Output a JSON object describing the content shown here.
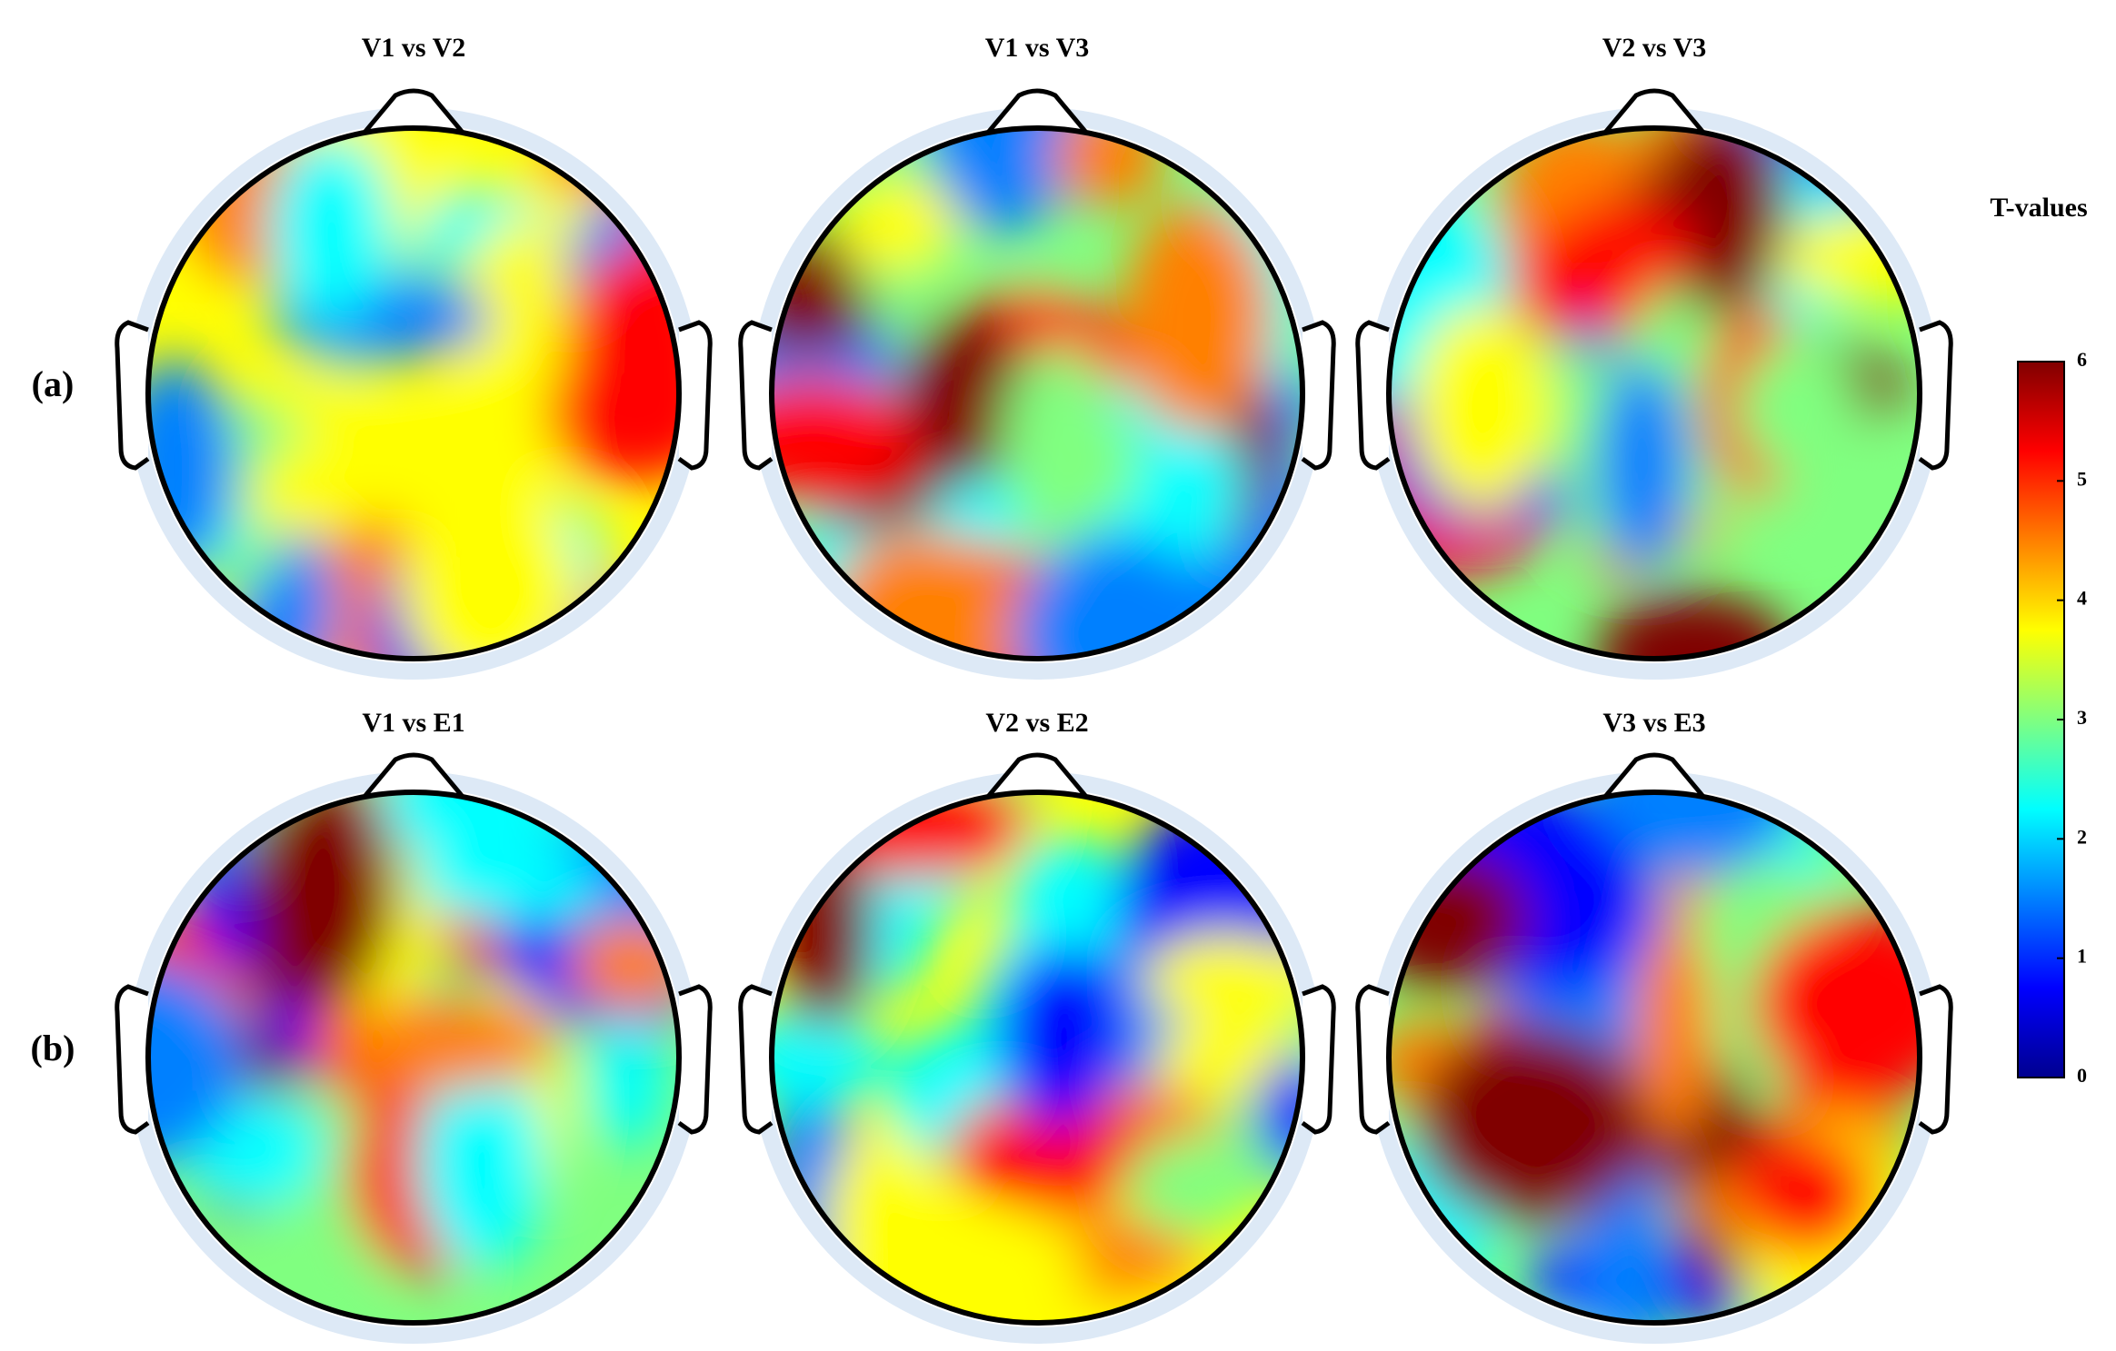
{
  "chart_data": {
    "type": "topomap",
    "panels": [
      {
        "title": "V1 vs V2"
      },
      {
        "title": "V1 vs V3"
      },
      {
        "title": "V2 vs V3"
      },
      {
        "title": "V1 vs E1"
      },
      {
        "title": "V2 vs E2"
      },
      {
        "title": "V3 vs E3"
      }
    ],
    "row_labels": [
      "(a)",
      "(b)"
    ],
    "colorbar": {
      "label": "T-values",
      "lim": [
        0,
        6
      ],
      "ticks": [
        0,
        1,
        2,
        3,
        4,
        5,
        6
      ],
      "colormap": [
        "#00008f",
        "#0000ff",
        "#0080ff",
        "#00ffff",
        "#80ff80",
        "#ffff00",
        "#ff8000",
        "#ff0000",
        "#800000"
      ]
    }
  }
}
